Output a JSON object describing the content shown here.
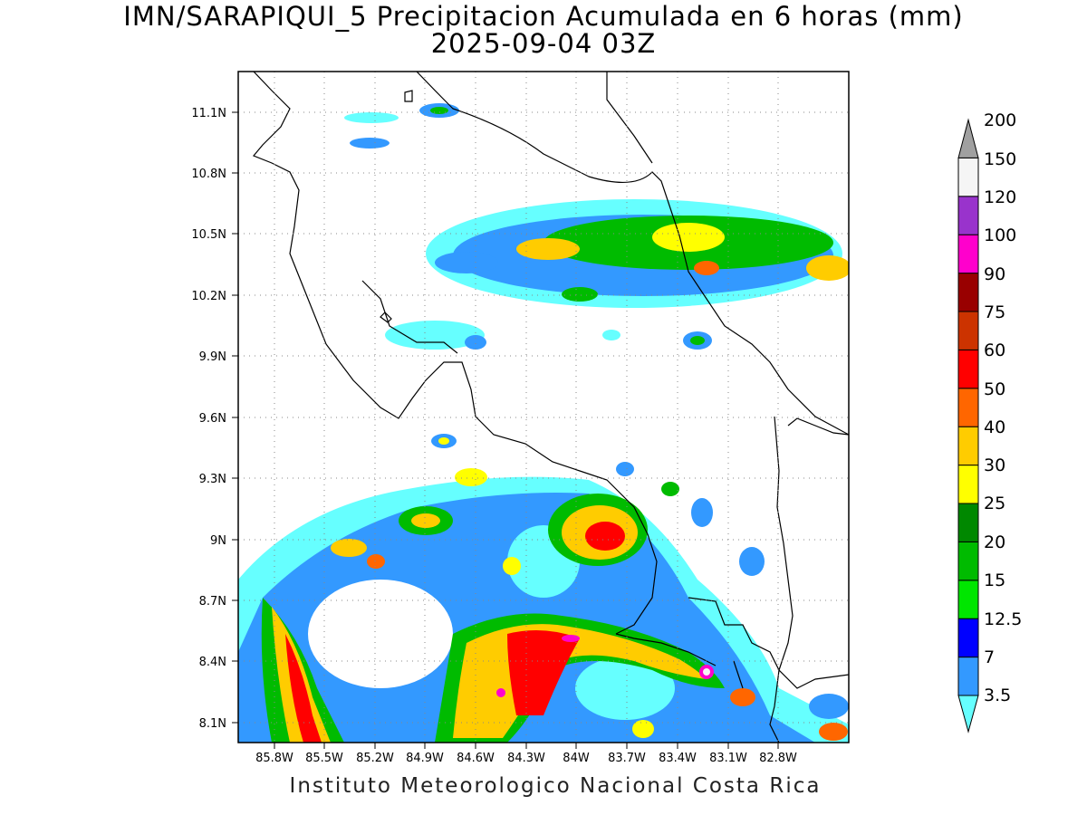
{
  "title": {
    "line1": "IMN/SARAPIQUI_5 Precipitacion Acumulada en 6 horas (mm)",
    "line2": "2025-09-04 03Z"
  },
  "footer": "Instituto Meteorologico Nacional Costa Rica",
  "axes": {
    "lat_labels": [
      "11.1N",
      "10.8N",
      "10.5N",
      "10.2N",
      "9.9N",
      "9.6N",
      "9.3N",
      "9N",
      "8.7N",
      "8.4N",
      "8.1N"
    ],
    "lon_labels": [
      "85.8W",
      "85.5W",
      "85.2W",
      "84.9W",
      "84.6W",
      "84.3W",
      "84W",
      "83.7W",
      "83.4W",
      "83.1W",
      "82.8W"
    ],
    "grid": true
  },
  "legend": {
    "levels": [
      "3.5",
      "7",
      "12.5",
      "15",
      "20",
      "25",
      "30",
      "40",
      "50",
      "60",
      "75",
      "90",
      "100",
      "120",
      "150",
      "200"
    ],
    "colors": [
      "#66ffff",
      "#3399ff",
      "#0000ff",
      "#00e600",
      "#00bb00",
      "#008800",
      "#ffff00",
      "#ffcc00",
      "#ff6600",
      "#ff0000",
      "#cc3300",
      "#990000",
      "#ff00cc",
      "#9933cc",
      "#f5f5f5",
      "#a0a0a0"
    ]
  }
}
